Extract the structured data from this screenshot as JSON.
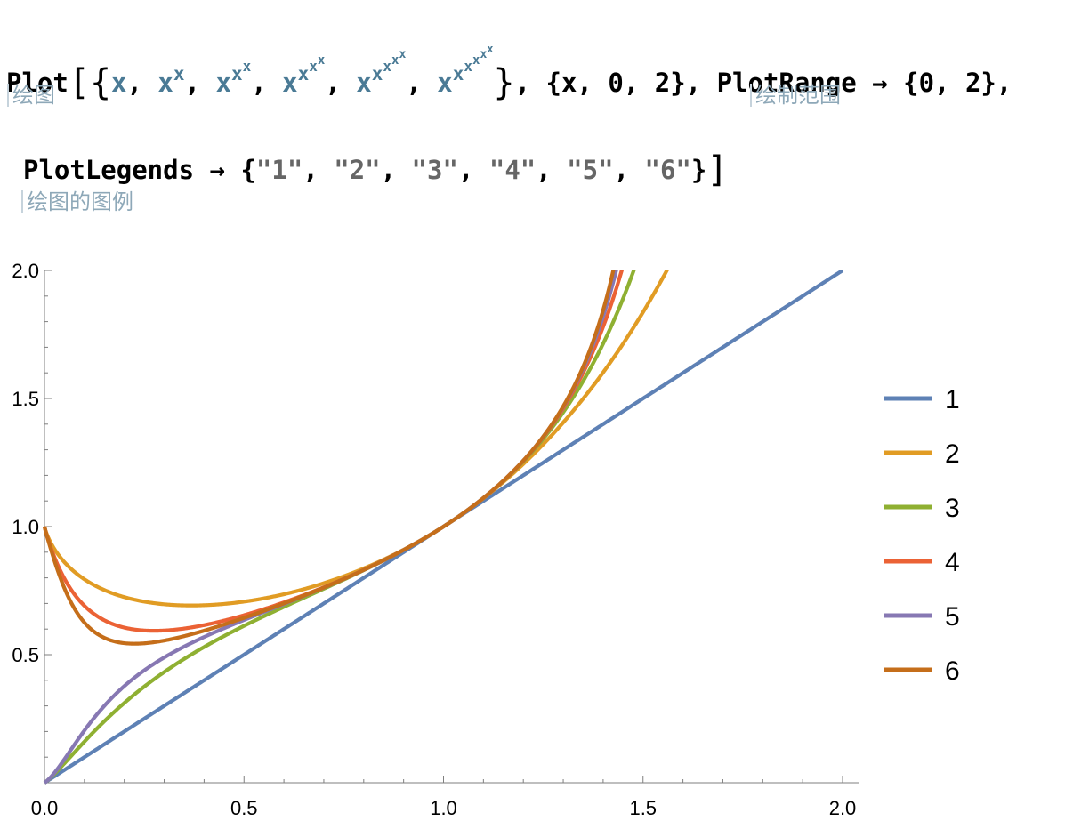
{
  "code": {
    "line1": {
      "plot_fn": "Plot",
      "open_bracket": "[",
      "open_brace": "{",
      "var": "x",
      "comma": ", ",
      "close_brace": "}",
      "range_spec": ", {x, 0, 2}, ",
      "opt_name": "PlotRange",
      "arrow": " → ",
      "opt_value": "{0, 2},"
    },
    "line2": {
      "opt_name": "PlotLegends",
      "arrow": " → ",
      "open_brace": "{",
      "legend_strings": [
        "\"1\"",
        "\"2\"",
        "\"3\"",
        "\"4\"",
        "\"5\"",
        "\"6\""
      ],
      "sep": ", ",
      "close_brace": "}",
      "close_bracket": "]"
    },
    "hints": {
      "plot": "绘图",
      "plot_range": "绘制范围",
      "plot_legends": "绘图的图例"
    }
  },
  "chart_data": {
    "type": "line",
    "title": "",
    "xlabel": "",
    "ylabel": "",
    "xlim": [
      0,
      2
    ],
    "ylim": [
      0,
      2
    ],
    "x_ticks": [
      0.0,
      0.5,
      1.0,
      1.5,
      2.0
    ],
    "x_tick_labels": [
      "0.0",
      "0.5",
      "1.0",
      "1.5",
      "2.0"
    ],
    "y_ticks": [
      0.5,
      1.0,
      1.5,
      2.0
    ],
    "y_tick_labels": [
      "0.5",
      "1.0",
      "1.5",
      "2.0"
    ],
    "legend_position": "right",
    "series": [
      {
        "name": "1",
        "expr": "x",
        "tower": 1,
        "color": "#5e81b5"
      },
      {
        "name": "2",
        "expr": "x^x",
        "tower": 2,
        "color": "#e19c24"
      },
      {
        "name": "3",
        "expr": "x^x^x",
        "tower": 3,
        "color": "#8fb032"
      },
      {
        "name": "4",
        "expr": "x^x^x^x",
        "tower": 4,
        "color": "#eb6235"
      },
      {
        "name": "5",
        "expr": "x^x^x^x^x",
        "tower": 5,
        "color": "#8778b3"
      },
      {
        "name": "6",
        "expr": "x^x^x^x^x^x",
        "tower": 6,
        "color": "#c56e1a"
      }
    ]
  }
}
